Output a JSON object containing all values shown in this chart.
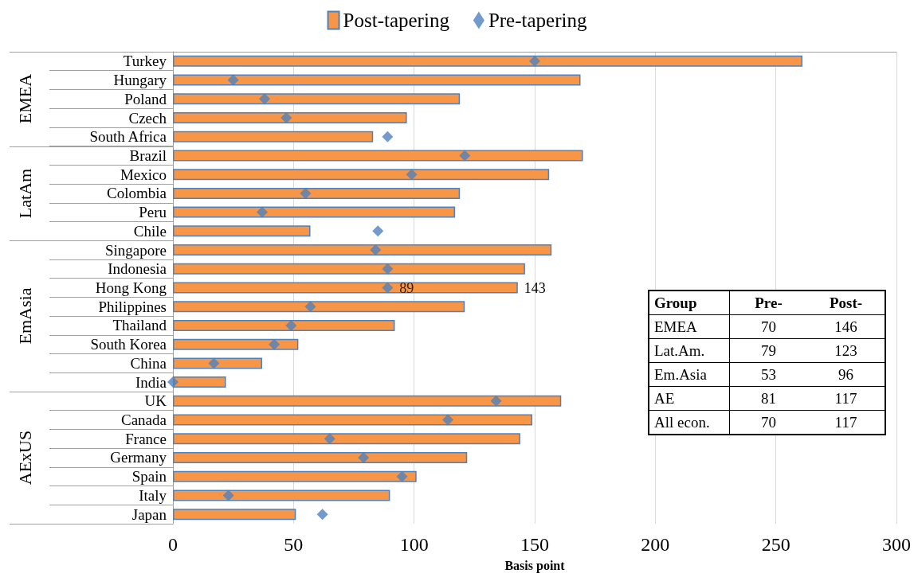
{
  "chart_data": {
    "type": "bar",
    "orientation": "horizontal",
    "xlabel": "Basis point",
    "categories": [
      "Turkey",
      "Hungary",
      "Poland",
      "Czech",
      "South Africa",
      "Brazil",
      "Mexico",
      "Colombia",
      "Peru",
      "Chile",
      "Singapore",
      "Indonesia",
      "Hong Kong",
      "Philippines",
      "Thailand",
      "South Korea",
      "China",
      "India",
      "UK",
      "Canada",
      "France",
      "Germany",
      "Spain",
      "Italy",
      "Japan"
    ],
    "series": [
      {
        "name": "Post-tapering",
        "color": "#f79646",
        "values": [
          261,
          169,
          119,
          97,
          83,
          170,
          156,
          119,
          117,
          57,
          157,
          146,
          143,
          121,
          92,
          52,
          37,
          22,
          161,
          149,
          144,
          122,
          101,
          90,
          51
        ],
        "value_labels": [
          null,
          null,
          null,
          null,
          null,
          null,
          null,
          null,
          null,
          null,
          null,
          null,
          "143",
          null,
          null,
          null,
          null,
          null,
          null,
          null,
          null,
          null,
          null,
          null,
          null
        ]
      },
      {
        "name": "Pre-tapering",
        "type": "scatter",
        "color": "#4f81bd",
        "marker": "diamond",
        "values": [
          150,
          25,
          38,
          47,
          89,
          121,
          99,
          55,
          37,
          85,
          84,
          89,
          89,
          57,
          49,
          42,
          17,
          0,
          134,
          114,
          65,
          79,
          95,
          23,
          62
        ],
        "value_labels": [
          null,
          null,
          null,
          null,
          null,
          null,
          null,
          null,
          null,
          null,
          null,
          null,
          "89",
          null,
          null,
          null,
          null,
          null,
          null,
          null,
          null,
          null,
          null,
          null,
          null
        ]
      }
    ],
    "xlim": [
      0,
      300
    ],
    "xticks": [
      0,
      50,
      100,
      150,
      200,
      250,
      300
    ],
    "grid": "x",
    "legend": "top",
    "annotations": [
      "EMEA",
      "LatAm",
      "EmAsia",
      "AExUS",
      "Group",
      "Pre-",
      "Post-",
      "EMEA",
      "70",
      "146",
      "Lat.Am.",
      "79",
      "123",
      "Em.Asia",
      "53",
      "96",
      "AE",
      "81",
      "117",
      "All econ.",
      "70",
      "117"
    ]
  }
}
